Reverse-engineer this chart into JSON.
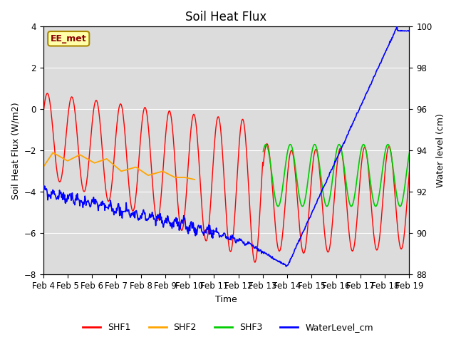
{
  "title": "Soil Heat Flux",
  "xlabel": "Time",
  "ylabel_left": "Soil Heat Flux (W/m2)",
  "ylabel_right": "Water level (cm)",
  "ylim_left": [
    -8,
    4
  ],
  "ylim_right": [
    88,
    100
  ],
  "yticks_left": [
    -8,
    -6,
    -4,
    -2,
    0,
    2,
    4
  ],
  "yticks_right": [
    88,
    90,
    92,
    94,
    96,
    98,
    100
  ],
  "xtick_labels": [
    "Feb 4",
    "Feb 5",
    "Feb 6",
    "Feb 7",
    "Feb 8",
    "Feb 9",
    "Feb 10",
    "Feb 11",
    "Feb 12",
    "Feb 13",
    "Feb 14",
    "Feb 15",
    "Feb 16",
    "Feb 17",
    "Feb 18",
    "Feb 19"
  ],
  "shf1_color": "#FF0000",
  "shf2_color": "#FFA500",
  "shf3_color": "#00CC00",
  "water_color": "#0000FF",
  "bg_color": "#DCDCDC",
  "fig_bg_color": "#FFFFFF",
  "ee_met_label": "EE_met",
  "ee_met_facecolor": "#FFFFAA",
  "ee_met_edgecolor": "#AA8800",
  "ee_met_textcolor": "#8B0000",
  "legend_entries": [
    "SHF1",
    "SHF2",
    "SHF3",
    "WaterLevel_cm"
  ],
  "title_fontsize": 12,
  "axis_label_fontsize": 9,
  "tick_fontsize": 8.5,
  "n_days": 15
}
